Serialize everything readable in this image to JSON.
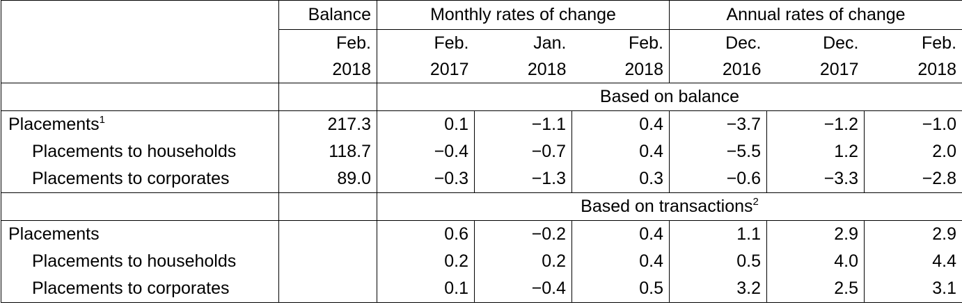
{
  "header": {
    "balance": "Balance",
    "monthly": "Monthly rates of change",
    "annual": "Annual rates of change",
    "col_months": [
      "Feb.",
      "Feb.",
      "Jan.",
      "Feb.",
      "Dec.",
      "Dec.",
      "Feb."
    ],
    "col_years": [
      "2018",
      "2017",
      "2018",
      "2018",
      "2016",
      "2017",
      "2018"
    ]
  },
  "section1": {
    "title": "Based on balance",
    "rows": [
      {
        "label": "Placements",
        "sup": "1",
        "values": [
          "217.3",
          "0.1",
          "−1.1",
          "0.4",
          "−3.7",
          "−1.2",
          "−1.0"
        ]
      },
      {
        "label": "Placements to households",
        "sup": "",
        "values": [
          "118.7",
          "−0.4",
          "−0.7",
          "0.4",
          "−5.5",
          "1.2",
          "2.0"
        ]
      },
      {
        "label": "Placements to corporates",
        "sup": "",
        "values": [
          "89.0",
          "−0.3",
          "−1.3",
          "0.3",
          "−0.6",
          "−3.3",
          "−2.8"
        ]
      }
    ]
  },
  "section2": {
    "title": "Based on transactions",
    "title_sup": "2",
    "rows": [
      {
        "label": "Placements",
        "sup": "",
        "values": [
          "",
          "0.6",
          "−0.2",
          "0.4",
          "1.1",
          "2.9",
          "2.9"
        ]
      },
      {
        "label": "Placements to households",
        "sup": "",
        "values": [
          "",
          "0.2",
          "0.2",
          "0.4",
          "0.5",
          "4.0",
          "4.4"
        ]
      },
      {
        "label": "Placements to corporates",
        "sup": "",
        "values": [
          "",
          "0.1",
          "−0.4",
          "0.5",
          "3.2",
          "2.5",
          "3.1"
        ]
      }
    ]
  }
}
